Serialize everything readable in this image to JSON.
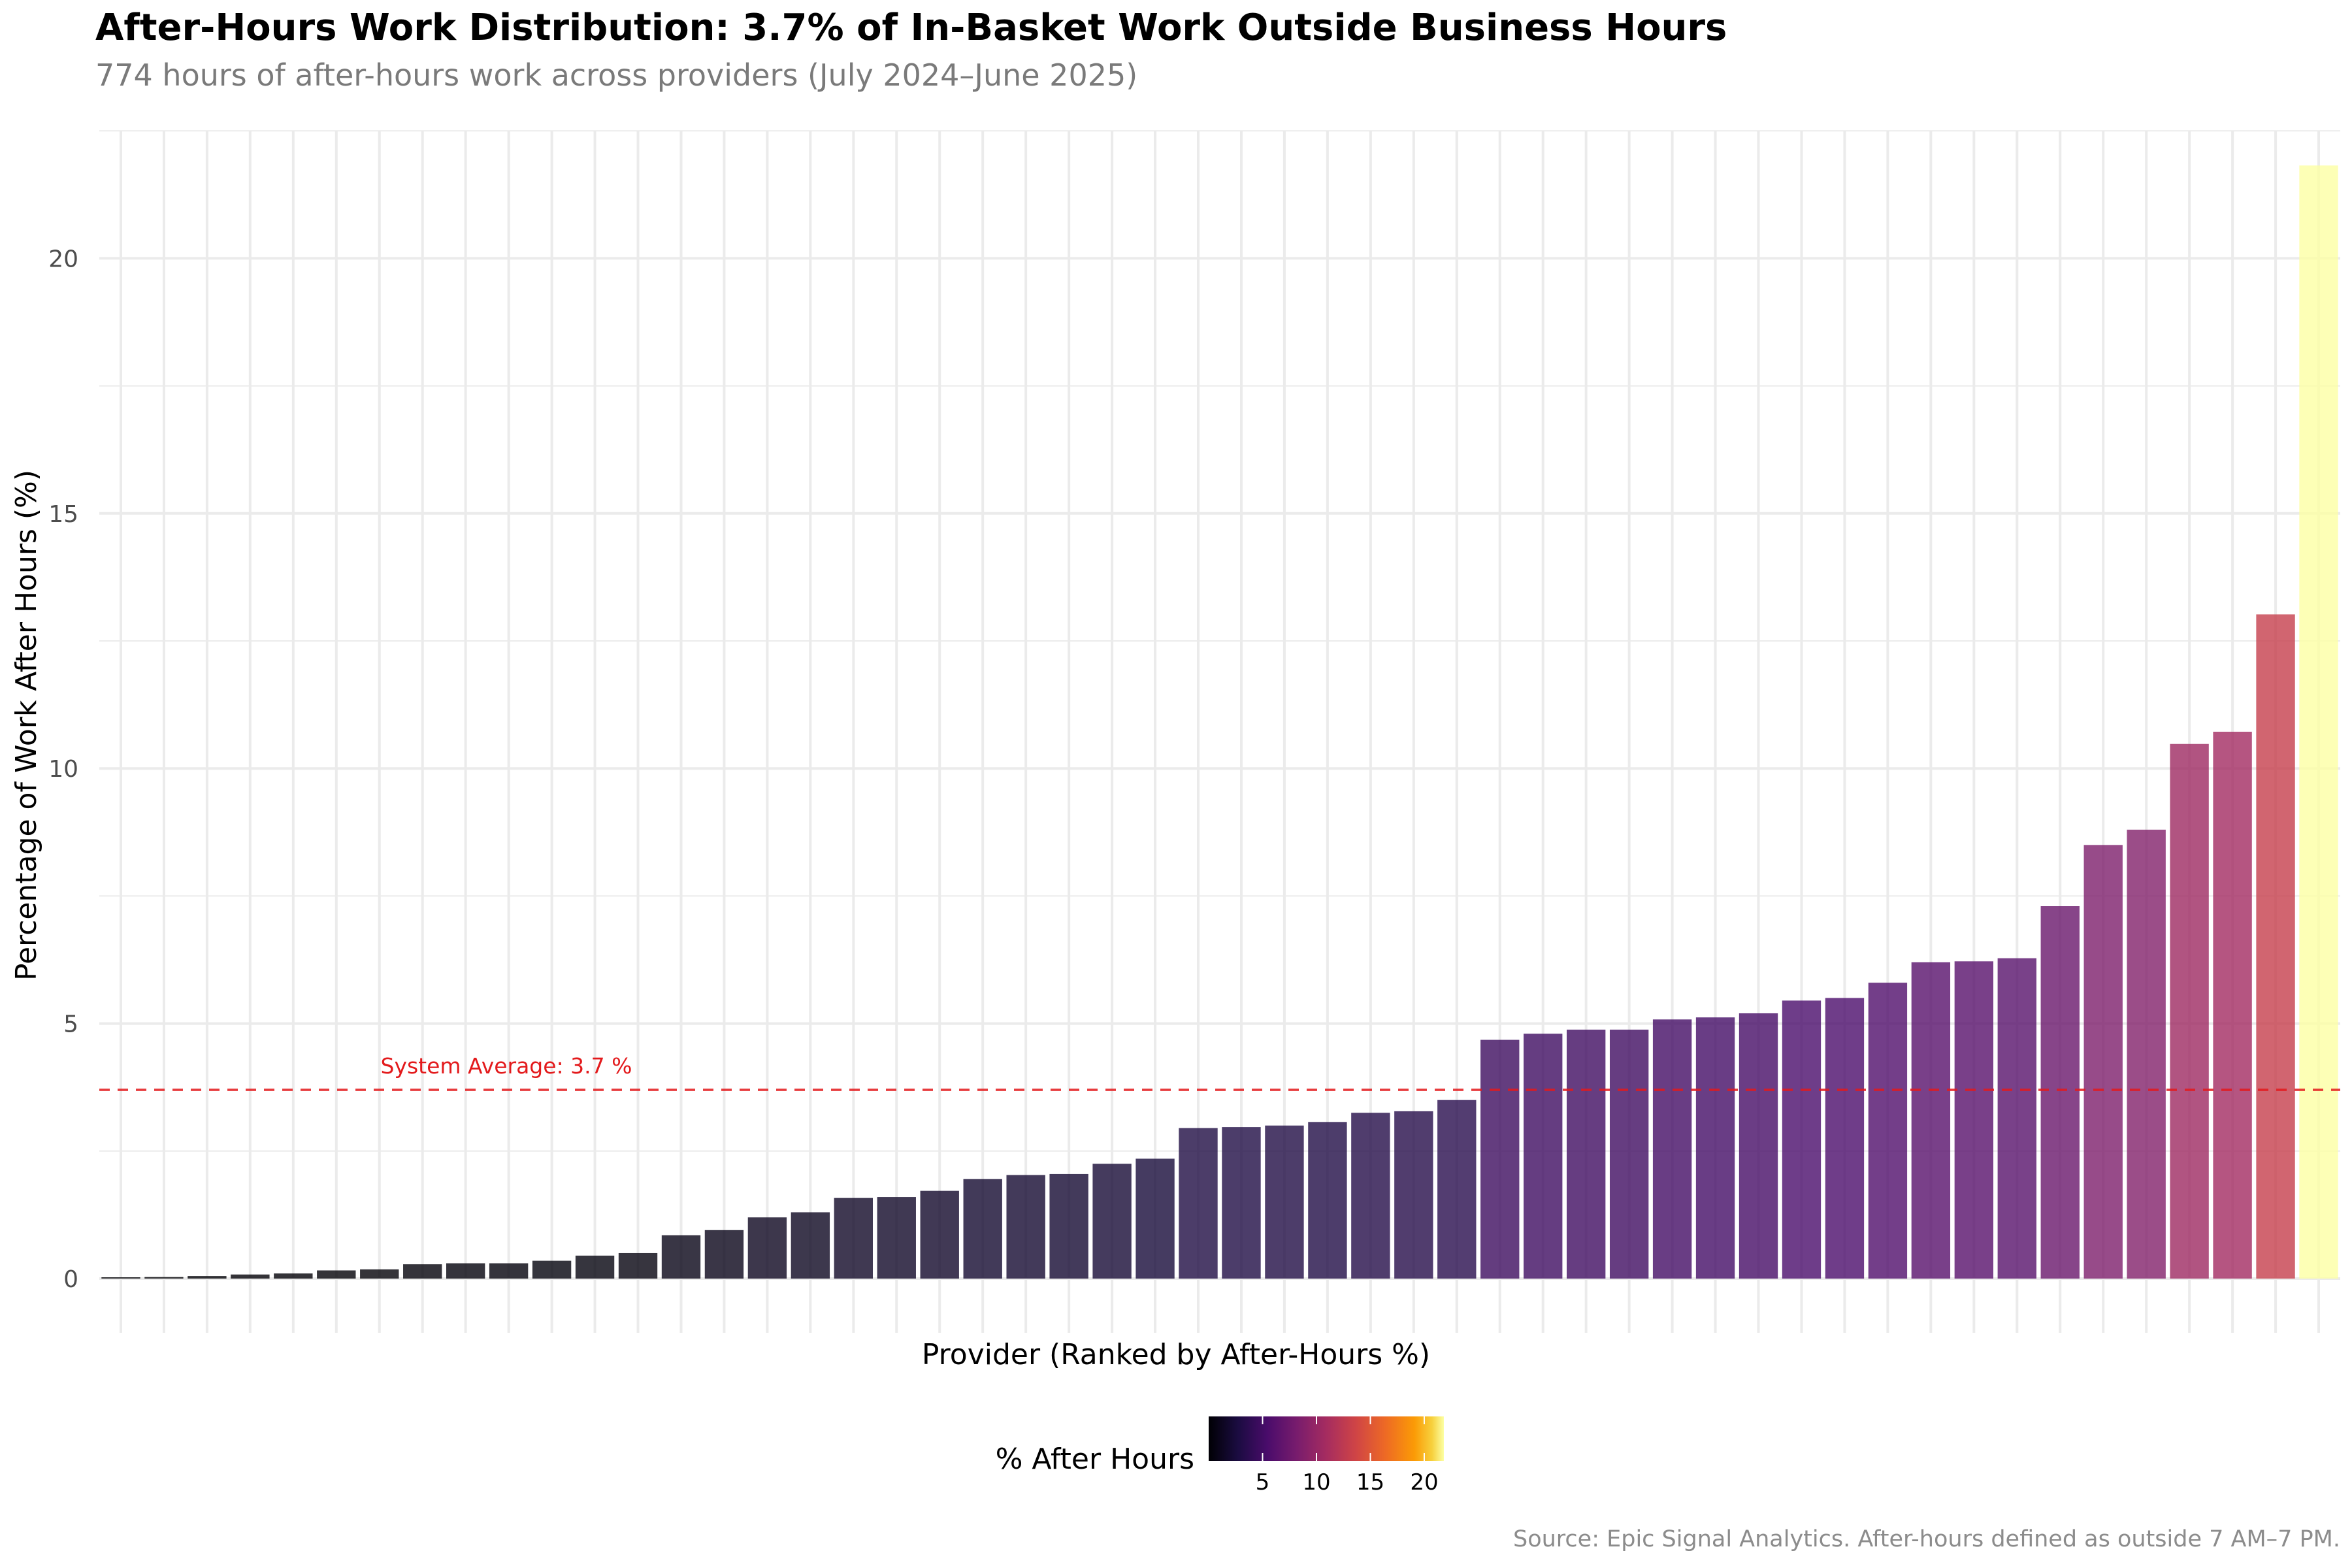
{
  "chart_data": {
    "type": "bar",
    "title": "After-Hours Work Distribution: 3.7% of In-Basket Work Outside Business Hours",
    "subtitle": "774 hours of after-hours work across providers (July 2024–June 2025)",
    "xlabel": "Provider (Ranked by After-Hours %)",
    "ylabel": "Percentage of Work After Hours (%)",
    "caption": "Source: Epic Signal Analytics. After-hours defined as outside 7 AM–7 PM.",
    "ylim": [
      0,
      22.5
    ],
    "yticks": [
      0,
      5,
      10,
      15,
      20
    ],
    "grid": true,
    "values": [
      0.02,
      0.03,
      0.05,
      0.08,
      0.1,
      0.16,
      0.18,
      0.28,
      0.3,
      0.3,
      0.35,
      0.45,
      0.5,
      0.85,
      0.95,
      1.2,
      1.3,
      1.58,
      1.6,
      1.72,
      1.95,
      2.03,
      2.05,
      2.25,
      2.35,
      2.95,
      2.97,
      3.0,
      3.07,
      3.25,
      3.28,
      3.5,
      4.68,
      4.8,
      4.88,
      4.88,
      5.08,
      5.12,
      5.2,
      5.45,
      5.5,
      5.8,
      6.2,
      6.22,
      6.28,
      7.3,
      8.5,
      8.8,
      10.48,
      10.72,
      13.02,
      21.82
    ],
    "reference_line": {
      "value": 3.7,
      "label": "System Average: 3.7 %",
      "color": "#e31a1c",
      "style": "dashed"
    },
    "colorbar": {
      "title": "% After Hours",
      "ticks": [
        5,
        10,
        15,
        20
      ],
      "min": 0,
      "max": 21.82,
      "palette": "inferno",
      "position": "bottom"
    }
  }
}
